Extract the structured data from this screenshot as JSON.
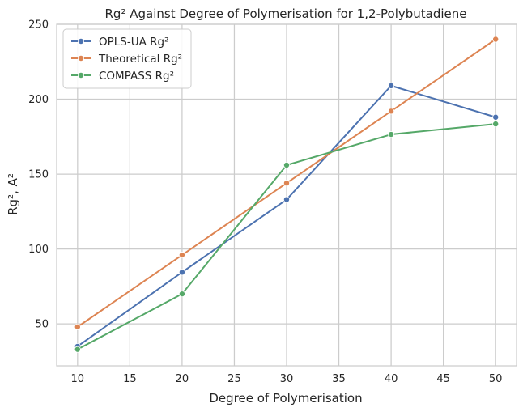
{
  "chart_data": {
    "type": "line",
    "title": "Rg² Against Degree of Polymerisation for 1,2-Polybutadiene",
    "xlabel": "Degree of Polymerisation",
    "ylabel": "Rg², A²",
    "x": [
      10,
      20,
      30,
      40,
      50
    ],
    "xlim": [
      8,
      52
    ],
    "ylim": [
      22,
      250
    ],
    "xticks": [
      10,
      15,
      20,
      25,
      30,
      35,
      40,
      45,
      50
    ],
    "yticks": [
      50,
      100,
      150,
      200,
      250
    ],
    "grid": true,
    "legend_position": "top-left",
    "series": [
      {
        "name": "OPLS-UA Rg²",
        "color": "#4c72b0",
        "values": [
          35,
          84.5,
          133,
          209,
          188
        ]
      },
      {
        "name": "Theoretical Rg²",
        "color": "#dd8452",
        "values": [
          48,
          96,
          144,
          192,
          240
        ]
      },
      {
        "name": "COMPASS Rg²",
        "color": "#55a868",
        "values": [
          33,
          70,
          156,
          176.5,
          183.5
        ]
      }
    ]
  }
}
